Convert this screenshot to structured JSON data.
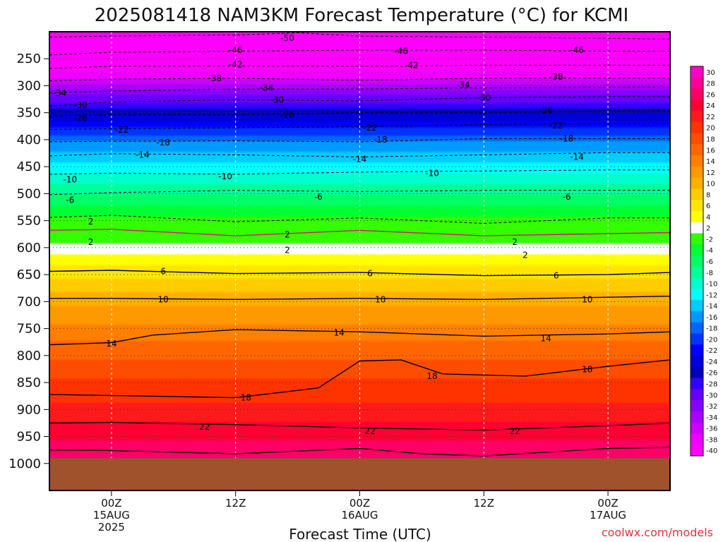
{
  "title": "2025081418 NAM3KM Forecast Temperature (°C) for KCMI",
  "credit": "coolwx.com/models",
  "chart_data": {
    "type": "heatmap",
    "title": "2025081418 NAM3KM Forecast Temperature (°C) for KCMI",
    "xlabel": "Forecast Time (UTC)",
    "ylabel": "",
    "x_range_hours": [
      -6,
      54
    ],
    "y_range_hpa": [
      200,
      1050
    ],
    "x_ticks": [
      {
        "hour": 0,
        "lines": [
          "00Z",
          "15AUG",
          "2025"
        ]
      },
      {
        "hour": 12,
        "lines": [
          "12Z"
        ]
      },
      {
        "hour": 24,
        "lines": [
          "00Z",
          "16AUG"
        ]
      },
      {
        "hour": 36,
        "lines": [
          "12Z"
        ]
      },
      {
        "hour": 48,
        "lines": [
          "00Z",
          "17AUG"
        ]
      }
    ],
    "y_ticks": [
      250,
      300,
      350,
      400,
      450,
      500,
      550,
      600,
      650,
      700,
      750,
      800,
      850,
      900,
      950,
      1000
    ],
    "surface_pressure_hpa": 990,
    "colorbar_labels": [
      "30",
      "28",
      "26",
      "24",
      "22",
      "20",
      "18",
      "16",
      "14",
      "12",
      "10",
      "8",
      "6",
      "4",
      "2",
      "-2",
      "-4",
      "-6",
      "-8",
      "-10",
      "-12",
      "-14",
      "-16",
      "-18",
      "-20",
      "-22",
      "-24",
      "-26",
      "-28",
      "-30",
      "-32",
      "-34",
      "-36",
      "-38",
      "-40"
    ],
    "colorbar_colors": [
      "#ff00cc",
      "#ff0099",
      "#ff0066",
      "#ff0033",
      "#ff1a1a",
      "#ff3300",
      "#ff4d00",
      "#ff6600",
      "#ff8000",
      "#ff9900",
      "#ffb000",
      "#ffcc00",
      "#ffe600",
      "#ffff00",
      "#ffffff",
      "#33ff00",
      "#00ff33",
      "#00ff66",
      "#00ff99",
      "#00ffcc",
      "#00ffff",
      "#00ccff",
      "#0099ff",
      "#0066ff",
      "#0033ff",
      "#0000ff",
      "#0000dd",
      "#0000bb",
      "#3300ff",
      "#6600ff",
      "#8800ff",
      "#aa00ff",
      "#cc00ff",
      "#ee00ff",
      "#ff00ff"
    ],
    "temperature_profile": [
      {
        "p": 200,
        "t": -55
      },
      {
        "p": 250,
        "t": -44
      },
      {
        "p": 300,
        "t": -35
      },
      {
        "p": 350,
        "t": -26
      },
      {
        "p": 400,
        "t": -18
      },
      {
        "p": 450,
        "t": -13
      },
      {
        "p": 500,
        "t": -8
      },
      {
        "p": 550,
        "t": -3
      },
      {
        "p": 600,
        "t": 1
      },
      {
        "p": 650,
        "t": 6
      },
      {
        "p": 700,
        "t": 10
      },
      {
        "p": 750,
        "t": 13
      },
      {
        "p": 800,
        "t": 16
      },
      {
        "p": 850,
        "t": 19
      },
      {
        "p": 900,
        "t": 21
      },
      {
        "p": 950,
        "t": 24
      },
      {
        "p": 1000,
        "t": 27
      }
    ],
    "contours": [
      {
        "t": -50,
        "style": "dashed",
        "points": [
          [
            -6,
            210
          ],
          [
            0,
            208
          ],
          [
            12,
            206
          ],
          [
            18,
            202
          ],
          [
            24,
            208
          ],
          [
            36,
            210
          ],
          [
            48,
            212
          ],
          [
            54,
            214
          ]
        ]
      },
      {
        "t": -46,
        "style": "dashed",
        "points": [
          [
            -6,
            243
          ],
          [
            0,
            238
          ],
          [
            12,
            236
          ],
          [
            24,
            234
          ],
          [
            36,
            234
          ],
          [
            48,
            236
          ],
          [
            54,
            236
          ]
        ]
      },
      {
        "t": -42,
        "style": "dashed",
        "points": [
          [
            -6,
            268
          ],
          [
            0,
            264
          ],
          [
            12,
            263
          ],
          [
            24,
            264
          ],
          [
            36,
            262
          ],
          [
            48,
            262
          ],
          [
            54,
            262
          ]
        ]
      },
      {
        "t": -38,
        "style": "dashed",
        "points": [
          [
            -6,
            291
          ],
          [
            0,
            288
          ],
          [
            12,
            286
          ],
          [
            24,
            290
          ],
          [
            36,
            286
          ],
          [
            48,
            286
          ],
          [
            54,
            286
          ]
        ]
      },
      {
        "t": -34,
        "style": "dashed",
        "points": [
          [
            -6,
            313
          ],
          [
            0,
            310
          ],
          [
            12,
            306
          ],
          [
            24,
            306
          ],
          [
            36,
            304
          ],
          [
            48,
            303
          ],
          [
            54,
            303
          ]
        ]
      },
      {
        "t": -30,
        "style": "dashed",
        "points": [
          [
            -6,
            338
          ],
          [
            0,
            330
          ],
          [
            12,
            326
          ],
          [
            24,
            328
          ],
          [
            36,
            322
          ],
          [
            48,
            320
          ],
          [
            54,
            320
          ]
        ]
      },
      {
        "t": -26,
        "style": "dashed",
        "points": [
          [
            -6,
            356
          ],
          [
            0,
            354
          ],
          [
            12,
            354
          ],
          [
            24,
            350
          ],
          [
            36,
            350
          ],
          [
            48,
            346
          ],
          [
            54,
            346
          ]
        ]
      },
      {
        "t": -22,
        "style": "dashed",
        "points": [
          [
            -6,
            381
          ],
          [
            0,
            380
          ],
          [
            12,
            378
          ],
          [
            24,
            376
          ],
          [
            36,
            372
          ],
          [
            48,
            370
          ],
          [
            54,
            370
          ]
        ]
      },
      {
        "t": -18,
        "style": "dashed",
        "points": [
          [
            -6,
            404
          ],
          [
            0,
            403
          ],
          [
            12,
            402
          ],
          [
            24,
            404
          ],
          [
            36,
            398
          ],
          [
            48,
            398
          ],
          [
            54,
            398
          ]
        ]
      },
      {
        "t": -14,
        "style": "dashed",
        "points": [
          [
            -6,
            430
          ],
          [
            0,
            426
          ],
          [
            12,
            428
          ],
          [
            24,
            432
          ],
          [
            36,
            428
          ],
          [
            48,
            424
          ],
          [
            54,
            424
          ]
        ]
      },
      {
        "t": -10,
        "style": "dashed",
        "points": [
          [
            -6,
            464
          ],
          [
            0,
            462
          ],
          [
            12,
            464
          ],
          [
            24,
            460
          ],
          [
            36,
            458
          ],
          [
            48,
            456
          ],
          [
            54,
            456
          ]
        ]
      },
      {
        "t": -6,
        "style": "dashed",
        "points": [
          [
            -6,
            502
          ],
          [
            0,
            498
          ],
          [
            12,
            494
          ],
          [
            24,
            496
          ],
          [
            36,
            494
          ],
          [
            48,
            494
          ],
          [
            54,
            494
          ]
        ]
      },
      {
        "t": -2,
        "style": "dashed",
        "points": [
          [
            -6,
            544
          ],
          [
            0,
            540
          ],
          [
            12,
            552
          ],
          [
            24,
            545
          ],
          [
            36,
            555
          ],
          [
            48,
            545
          ],
          [
            54,
            545
          ]
        ]
      },
      {
        "t": 2,
        "style": "solid",
        "points": [
          [
            -6,
            568
          ],
          [
            0,
            566
          ],
          [
            12,
            578
          ],
          [
            24,
            568
          ],
          [
            36,
            578
          ],
          [
            48,
            574
          ],
          [
            54,
            572
          ]
        ]
      },
      {
        "t": 6,
        "style": "solid",
        "points": [
          [
            -6,
            644
          ],
          [
            0,
            642
          ],
          [
            12,
            648
          ],
          [
            24,
            646
          ],
          [
            36,
            652
          ],
          [
            48,
            650
          ],
          [
            54,
            646
          ]
        ]
      },
      {
        "t": 10,
        "style": "solid",
        "points": [
          [
            -6,
            694
          ],
          [
            0,
            694
          ],
          [
            12,
            696
          ],
          [
            24,
            694
          ],
          [
            36,
            696
          ],
          [
            48,
            692
          ],
          [
            54,
            690
          ]
        ]
      },
      {
        "t": 14,
        "style": "solid",
        "points": [
          [
            -6,
            780
          ],
          [
            0,
            776
          ],
          [
            4,
            762
          ],
          [
            12,
            752
          ],
          [
            24,
            756
          ],
          [
            36,
            764
          ],
          [
            48,
            760
          ],
          [
            54,
            756
          ]
        ]
      },
      {
        "t": 18,
        "style": "solid",
        "points": [
          [
            -6,
            872
          ],
          [
            0,
            874
          ],
          [
            12,
            878
          ],
          [
            20,
            860
          ],
          [
            24,
            810
          ],
          [
            28,
            808
          ],
          [
            32,
            834
          ],
          [
            40,
            838
          ],
          [
            48,
            820
          ],
          [
            54,
            808
          ]
        ]
      },
      {
        "t": 22,
        "style": "solid",
        "points": [
          [
            -6,
            925
          ],
          [
            0,
            924
          ],
          [
            12,
            928
          ],
          [
            24,
            934
          ],
          [
            36,
            938
          ],
          [
            48,
            930
          ],
          [
            54,
            925
          ]
        ]
      },
      {
        "t": 26,
        "style": "solid",
        "points": [
          [
            -6,
            975
          ],
          [
            0,
            976
          ],
          [
            12,
            982
          ],
          [
            24,
            972
          ],
          [
            30,
            982
          ],
          [
            36,
            986
          ],
          [
            48,
            972
          ],
          [
            54,
            970
          ]
        ]
      }
    ],
    "contour_labels": [
      {
        "text": "-50",
        "x": 17,
        "p": 212
      },
      {
        "text": "-46",
        "x": 12,
        "p": 234
      },
      {
        "text": "-46",
        "x": 28,
        "p": 236
      },
      {
        "text": "-46",
        "x": 45,
        "p": 234
      },
      {
        "text": "-42",
        "x": 12,
        "p": 261
      },
      {
        "text": "-42",
        "x": 29,
        "p": 262
      },
      {
        "text": "-38",
        "x": 10,
        "p": 286
      },
      {
        "text": "-38",
        "x": 43,
        "p": 284
      },
      {
        "text": "-34",
        "x": -5,
        "p": 314
      },
      {
        "text": "-34",
        "x": 15,
        "p": 304
      },
      {
        "text": "-34",
        "x": 34,
        "p": 299
      },
      {
        "text": "-30",
        "x": -3,
        "p": 336
      },
      {
        "text": "-30",
        "x": 16,
        "p": 326
      },
      {
        "text": "-30",
        "x": 36,
        "p": 322
      },
      {
        "text": "-26",
        "x": -3,
        "p": 360
      },
      {
        "text": "-26",
        "x": 17,
        "p": 354
      },
      {
        "text": "-26",
        "x": 42,
        "p": 346
      },
      {
        "text": "-22",
        "x": 1,
        "p": 382
      },
      {
        "text": "-22",
        "x": 25,
        "p": 378
      },
      {
        "text": "-22",
        "x": 43,
        "p": 374
      },
      {
        "text": "-18",
        "x": 5,
        "p": 405
      },
      {
        "text": "-18",
        "x": 26,
        "p": 400
      },
      {
        "text": "-18",
        "x": 44,
        "p": 398
      },
      {
        "text": "-14",
        "x": 3,
        "p": 428
      },
      {
        "text": "-14",
        "x": 24,
        "p": 436
      },
      {
        "text": "-14",
        "x": 45,
        "p": 432
      },
      {
        "text": "-10",
        "x": -4,
        "p": 474
      },
      {
        "text": "-10",
        "x": 11,
        "p": 468
      },
      {
        "text": "-10",
        "x": 31,
        "p": 462
      },
      {
        "text": "-6",
        "x": -4,
        "p": 512
      },
      {
        "text": "-6",
        "x": 20,
        "p": 506
      },
      {
        "text": "-6",
        "x": 44,
        "p": 506
      },
      {
        "text": "2",
        "x": -2,
        "p": 552
      },
      {
        "text": "2",
        "x": 17,
        "p": 576
      },
      {
        "text": "2",
        "x": -2,
        "p": 590
      },
      {
        "text": "2",
        "x": 17,
        "p": 605
      },
      {
        "text": "2",
        "x": 39,
        "p": 590
      },
      {
        "text": "2",
        "x": 40,
        "p": 614
      },
      {
        "text": "6",
        "x": 5,
        "p": 644
      },
      {
        "text": "6",
        "x": 25,
        "p": 648
      },
      {
        "text": "6",
        "x": 43,
        "p": 652
      },
      {
        "text": "10",
        "x": 5,
        "p": 696
      },
      {
        "text": "10",
        "x": 26,
        "p": 696
      },
      {
        "text": "10",
        "x": 46,
        "p": 696
      },
      {
        "text": "14",
        "x": 0,
        "p": 778
      },
      {
        "text": "14",
        "x": 22,
        "p": 758
      },
      {
        "text": "14",
        "x": 42,
        "p": 768
      },
      {
        "text": "18",
        "x": 13,
        "p": 878
      },
      {
        "text": "18",
        "x": 31,
        "p": 838
      },
      {
        "text": "18",
        "x": 46,
        "p": 826
      },
      {
        "text": "22",
        "x": 9,
        "p": 932
      },
      {
        "text": "22",
        "x": 25,
        "p": 940
      },
      {
        "text": "22",
        "x": 39,
        "p": 940
      }
    ]
  }
}
